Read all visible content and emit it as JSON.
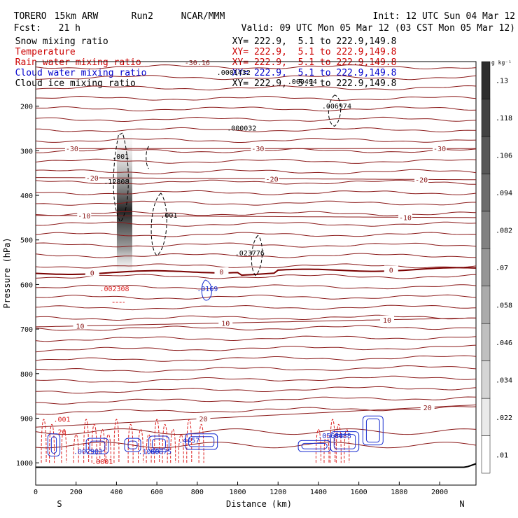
{
  "header": {
    "title": "TORERO",
    "model": "15km ARW",
    "run": "Run2",
    "org": "NCAR/MMM",
    "init": "Init: 12 UTC Sun 04 Mar 12",
    "fcst": "Fcst:",
    "fcst_hours": "21 h",
    "valid": "Valid: 09 UTC Mon 05 Mar 12 (03 CST Mon 05 Mar 12)"
  },
  "fields": [
    {
      "name": "Snow mixing ratio",
      "xy": "XY= 222.9,  5.1 to 222.9,149.8",
      "color": "#000000"
    },
    {
      "name": "Temperature",
      "xy": "XY= 222.9,  5.1 to 222.9,149.8",
      "color": "#cc0000"
    },
    {
      "name": "Rain water mixing ratio",
      "xy": "XY= 222.9,  5.1 to 222.9,149.8",
      "color": "#cc0000"
    },
    {
      "name": "Cloud water mixing ratio",
      "xy": "XY= 222.9,  5.1 to 222.9,149.8",
      "color": "#0000cc"
    },
    {
      "name": "Cloud ice mixing ratio",
      "xy": "XY= 222.9,  5.1 to 222.9,149.8",
      "color": "#000000"
    }
  ],
  "colors": {
    "temperature": "#8b1a1a",
    "zero_isotherm": "#7a0000",
    "rain": "#dd2222",
    "cloud_water": "#1a2fd0",
    "ground": "#000000",
    "purple_labels": "#800080"
  },
  "chart_data": {
    "type": "cross-section contour",
    "xlabel": "Distance (km)",
    "ylabel": "Pressure (hPa)",
    "xlim": [
      0,
      2180
    ],
    "ylim": [
      1050,
      100
    ],
    "x_ticks": [
      0,
      200,
      400,
      600,
      800,
      1000,
      1200,
      1400,
      1600,
      1800,
      2000
    ],
    "y_ticks": [
      200,
      300,
      400,
      500,
      600,
      700,
      800,
      900,
      1000
    ],
    "x_endpoints": {
      "left": "S",
      "right": "N"
    },
    "colorbar": {
      "unit": "g kg⁻¹",
      "levels": [
        0.01,
        0.022,
        0.034,
        0.046,
        0.058,
        0.07,
        0.082,
        0.094,
        0.106,
        0.118,
        0.13
      ],
      "tick_labels": [
        ".01",
        ".022",
        ".034",
        ".046",
        ".058",
        ".07",
        ".082",
        ".094",
        ".106",
        ".118",
        ".13"
      ]
    },
    "temperature_isotherms": [
      {
        "value": -30,
        "label": "-30",
        "p_left": 295,
        "p_right": 295,
        "labels_at_km": [
          180,
          1100,
          2000
        ]
      },
      {
        "value": -20,
        "label": "-20",
        "p_left": 360,
        "p_right": 365,
        "labels_at_km": [
          280,
          1170,
          1910
        ]
      },
      {
        "value": -10,
        "label": "-10",
        "p_left": 445,
        "p_right": 450,
        "labels_at_km": [
          240,
          1830
        ]
      },
      {
        "value": 0,
        "label": "0",
        "p_left": 575,
        "p_right": 565,
        "labels_at_km": [
          280,
          920,
          1760
        ]
      },
      {
        "value": 10,
        "label": "10",
        "p_left": 695,
        "p_right": 675,
        "labels_at_km": [
          220,
          940,
          1740
        ]
      },
      {
        "value": 20,
        "label": "20",
        "p_left": 920,
        "p_right": 870,
        "labels_at_km": [
          830,
          1940
        ]
      }
    ],
    "extra_top_label": "-30.16",
    "maxima_labels": [
      {
        "field": "snow",
        "text": ".000494",
        "x_km": 1320,
        "p": 150
      },
      {
        "field": "snow",
        "text": ".006974",
        "x_km": 1490,
        "p": 205
      },
      {
        "field": "snow",
        "text": ".000032",
        "x_km": 1020,
        "p": 255
      },
      {
        "field": "snow",
        "text": ".12808",
        "x_km": 400,
        "p": 375
      },
      {
        "field": "snow",
        "text": ".023776",
        "x_km": 1060,
        "p": 535
      },
      {
        "field": "snow",
        "text": ".0001432",
        "x_km": 980,
        "p": 130
      },
      {
        "field": "rain",
        "text": ".002308",
        "x_km": 390,
        "p": 615
      },
      {
        "field": "cloud_water",
        "text": ".0169",
        "x_km": 850,
        "p": 615
      },
      {
        "field": "rain",
        "text": ".001",
        "x_km": 130,
        "p": 908
      },
      {
        "field": "rain",
        "text": "20",
        "x_km": 130,
        "p": 936
      },
      {
        "field": "cloud_water",
        "text": ".05686",
        "x_km": 1460,
        "p": 945
      },
      {
        "field": "cloud_water",
        "text": ".0488",
        "x_km": 1510,
        "p": 945
      },
      {
        "field": "cloud_water",
        "text": ".002901",
        "x_km": 260,
        "p": 980
      },
      {
        "field": "cloud_water",
        "text": ".1060",
        "x_km": 560,
        "p": 980
      },
      {
        "field": "cloud_water",
        "text": ".06075",
        "x_km": 610,
        "p": 980
      },
      {
        "field": "cloud_water",
        "text": ".4457",
        "x_km": 760,
        "p": 955
      },
      {
        "field": "rain",
        "text": ".0001",
        "x_km": 330,
        "p": 1003
      },
      {
        "field": "snow",
        "text": ".001",
        "x_km": 420,
        "p": 318
      },
      {
        "field": "snow",
        "text": ".001",
        "x_km": 660,
        "p": 450
      }
    ]
  }
}
